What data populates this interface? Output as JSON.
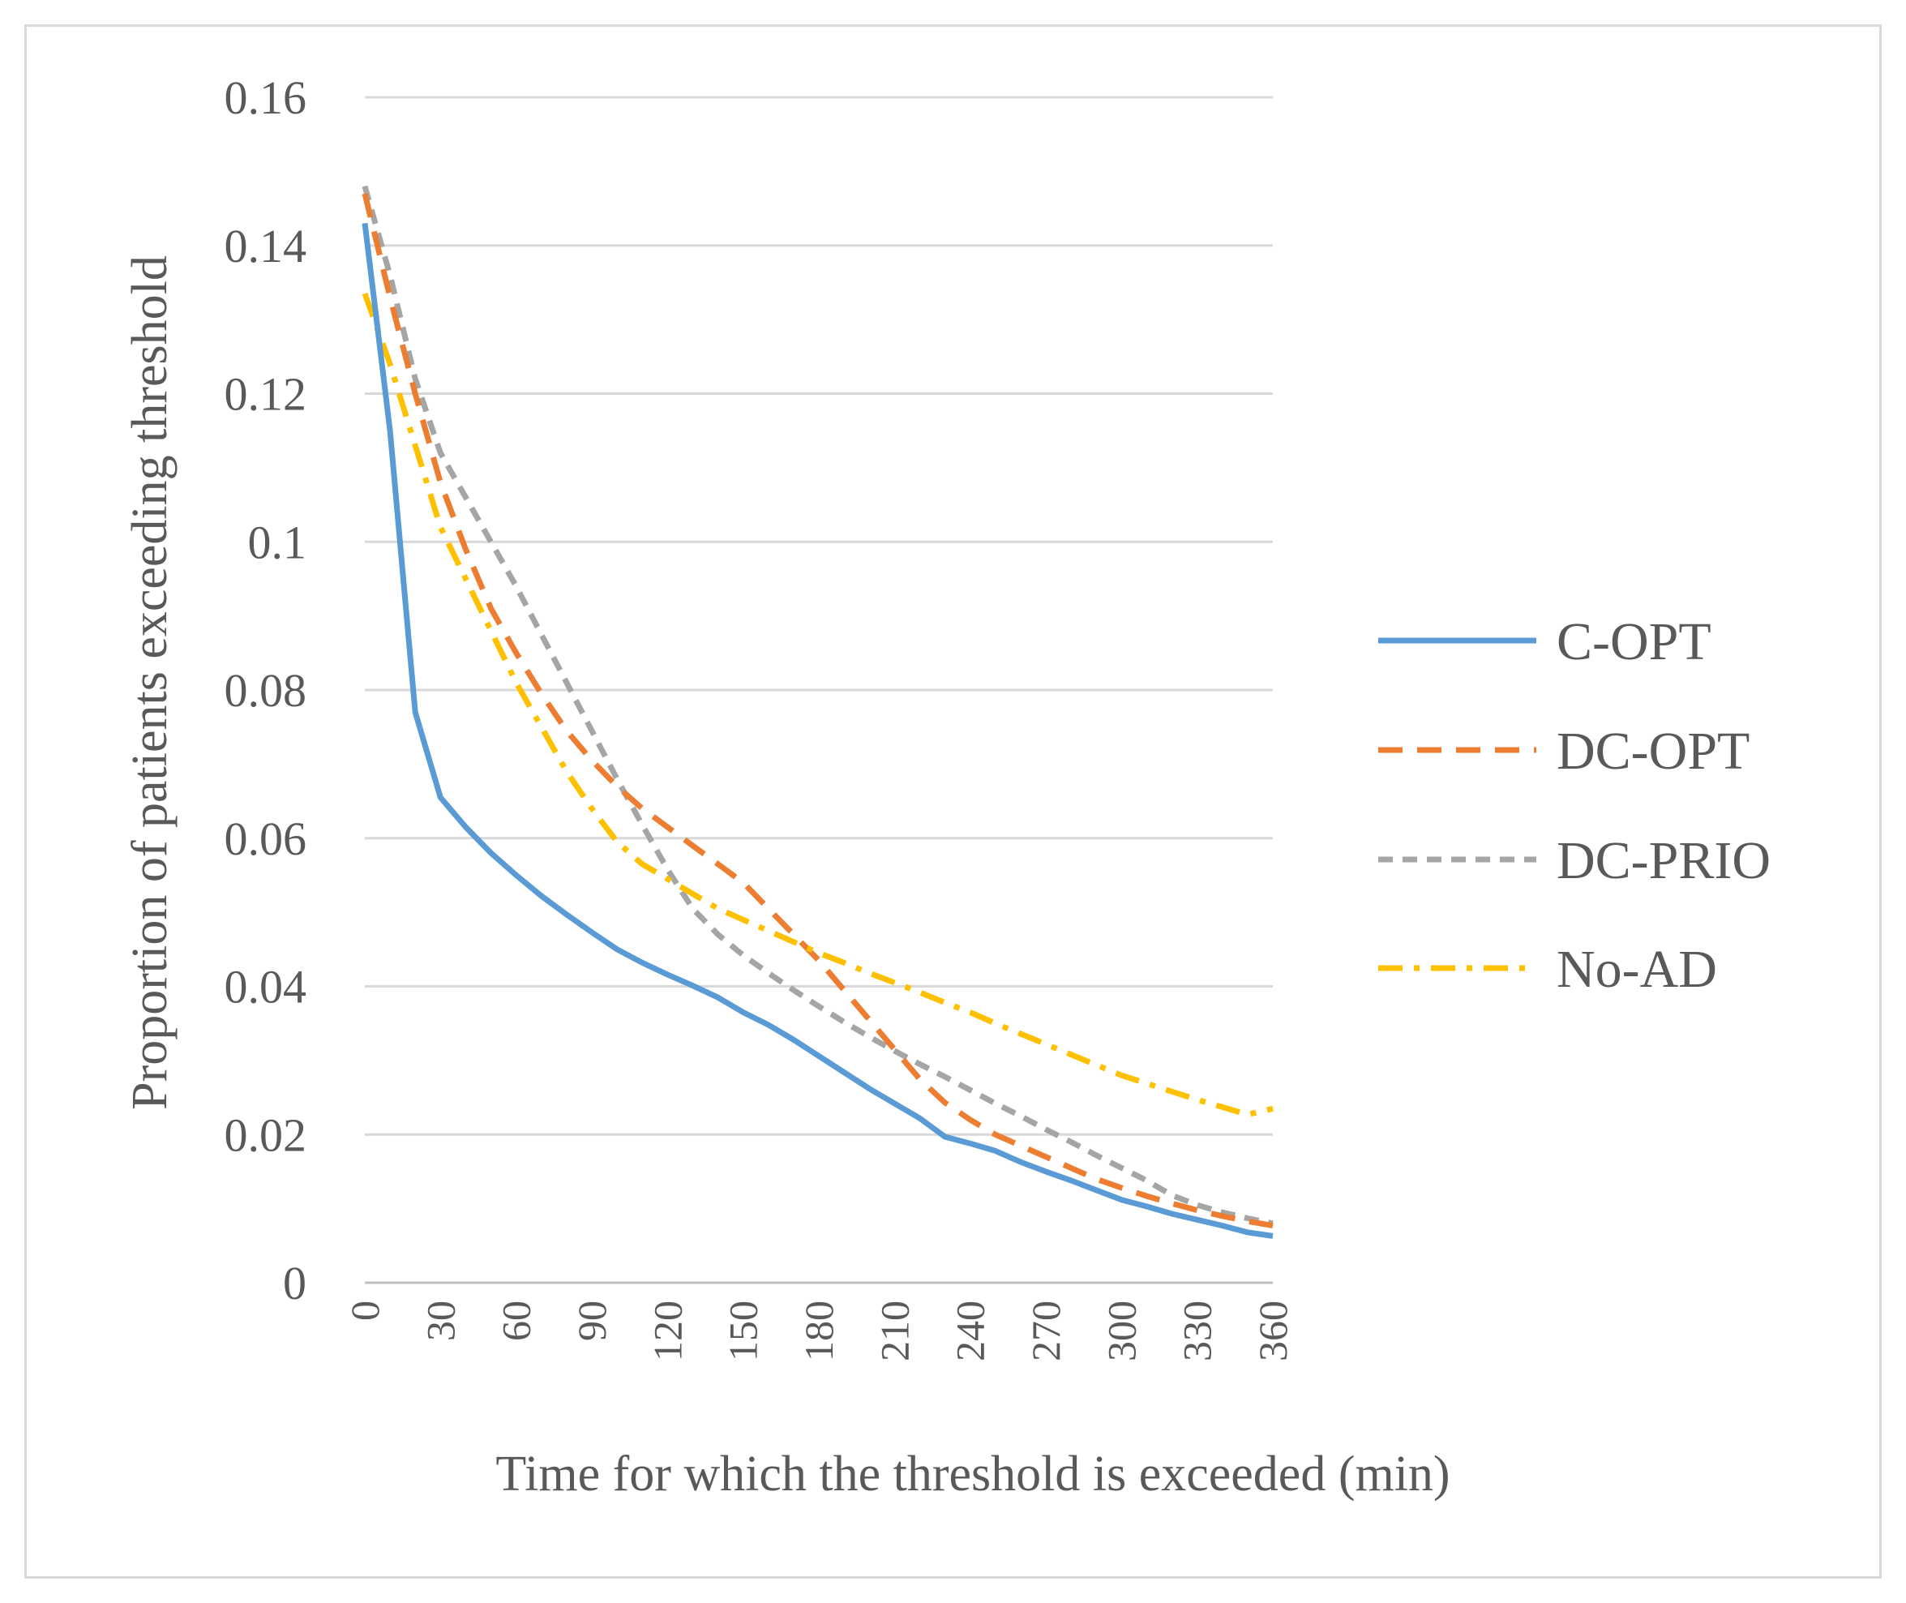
{
  "chart_data": {
    "type": "line",
    "title": "",
    "xlabel": "Time for which the threshold is exceeded (min)",
    "ylabel": "Proportion of patients exceeding threshold",
    "x": [
      0,
      10,
      20,
      30,
      40,
      50,
      60,
      70,
      80,
      90,
      100,
      110,
      120,
      130,
      140,
      150,
      160,
      170,
      180,
      190,
      200,
      210,
      220,
      230,
      240,
      250,
      260,
      270,
      280,
      290,
      300,
      310,
      320,
      330,
      340,
      350,
      360
    ],
    "xticks": [
      "0",
      "30",
      "60",
      "90",
      "120",
      "150",
      "180",
      "210",
      "240",
      "270",
      "300",
      "330",
      "360"
    ],
    "xlim": [
      0,
      360
    ],
    "yticks": [
      "0",
      "0.02",
      "0.04",
      "0.06",
      "0.08",
      "0.1",
      "0.12",
      "0.14",
      "0.16"
    ],
    "ylim": [
      0,
      0.16
    ],
    "grid": "horizontal",
    "legend_position": "right",
    "series": [
      {
        "name": "C-OPT",
        "color": "#5b9bd5",
        "dash": "solid",
        "values": [
          0.143,
          0.115,
          0.077,
          0.0655,
          0.0615,
          0.058,
          0.055,
          0.0522,
          0.0497,
          0.0473,
          0.045,
          0.0432,
          0.0416,
          0.0401,
          0.0385,
          0.0365,
          0.0348,
          0.0328,
          0.0306,
          0.0284,
          0.0262,
          0.0242,
          0.0222,
          0.0197,
          0.0188,
          0.0178,
          0.0163,
          0.015,
          0.0138,
          0.0125,
          0.0112,
          0.0103,
          0.0093,
          0.0085,
          0.0077,
          0.0068,
          0.0063
        ]
      },
      {
        "name": "DC-OPT",
        "color": "#ed7d31",
        "dash": "dashed",
        "values": [
          0.147,
          0.133,
          0.12,
          0.108,
          0.099,
          0.091,
          0.085,
          0.0795,
          0.0745,
          0.0705,
          0.067,
          0.064,
          0.0615,
          0.059,
          0.0565,
          0.054,
          0.0505,
          0.047,
          0.0435,
          0.0395,
          0.0355,
          0.0315,
          0.0275,
          0.0243,
          0.022,
          0.02,
          0.0185,
          0.017,
          0.0155,
          0.014,
          0.0128,
          0.0117,
          0.0107,
          0.0098,
          0.009,
          0.0083,
          0.0077
        ]
      },
      {
        "name": "DC-PRIO",
        "color": "#a5a5a5",
        "dash": "dashed-short",
        "values": [
          0.148,
          0.136,
          0.122,
          0.112,
          0.106,
          0.1,
          0.094,
          0.0875,
          0.081,
          0.0745,
          0.068,
          0.0618,
          0.0558,
          0.0505,
          0.047,
          0.0442,
          0.0418,
          0.0395,
          0.0373,
          0.0352,
          0.0332,
          0.0313,
          0.0295,
          0.0278,
          0.026,
          0.0242,
          0.0225,
          0.0207,
          0.019,
          0.0172,
          0.0155,
          0.0138,
          0.0118,
          0.0105,
          0.0095,
          0.0087,
          0.008
        ]
      },
      {
        "name": "No-AD",
        "color": "#ffc000",
        "dash": "dash-dot",
        "values": [
          0.1335,
          0.124,
          0.113,
          0.102,
          0.095,
          0.088,
          0.081,
          0.075,
          0.069,
          0.064,
          0.0595,
          0.0565,
          0.0545,
          0.0525,
          0.0505,
          0.049,
          0.0475,
          0.046,
          0.0445,
          0.0432,
          0.0418,
          0.0405,
          0.0392,
          0.0378,
          0.0365,
          0.035,
          0.0336,
          0.0322,
          0.0308,
          0.0294,
          0.028,
          0.0269,
          0.0258,
          0.0247,
          0.0237,
          0.0227,
          0.0235
        ]
      }
    ]
  }
}
